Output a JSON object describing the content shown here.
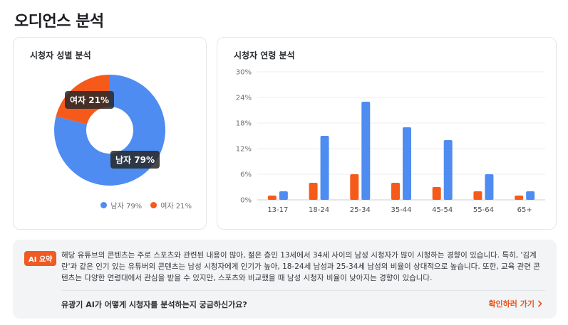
{
  "page": {
    "title": "오디언스 분석"
  },
  "gender": {
    "title": "시청자 성별 분석",
    "segments": [
      {
        "name": "남자",
        "value": 79,
        "color": "#4e8cf1"
      },
      {
        "name": "여자",
        "value": 21,
        "color": "#f65a1b"
      }
    ],
    "tooltip_male": "남자 79%",
    "tooltip_female": "여자 21%",
    "legend_male": "남자 79%",
    "legend_female": "여자 21%"
  },
  "age": {
    "title": "시청자 연령 분석"
  },
  "chart_data": {
    "type": "bar",
    "categories": [
      "13-17",
      "18-24",
      "25-34",
      "35-44",
      "45-54",
      "55-64",
      "65+"
    ],
    "series": [
      {
        "values": [
          1,
          4,
          6,
          4,
          3,
          2,
          1
        ],
        "color": "#f65a1b"
      },
      {
        "values": [
          2,
          15,
          23,
          17,
          14,
          6,
          2
        ],
        "color": "#4e8cf1"
      }
    ],
    "ylim": [
      0,
      30
    ],
    "yticks": [
      "0%",
      "6%",
      "12%",
      "18%",
      "24%",
      "30%"
    ],
    "grid": true
  },
  "ai": {
    "badge": "AI 요약",
    "summary": "해당 유튜브의 콘텐츠는 주로 스포츠와 관련된 내용이 많아, 젊은 층인 13세에서 34세 사이의 남성 시청자가 많이 시청하는 경향이 있습니다. 특히, '김계란'과 같은 인기 있는 유튜버의 콘텐츠는 남성 시청자에게 인기가 높아, 18-24세 남성과 25-34세 남성의 비율이 상대적으로 높습니다. 또한, 교육 관련 콘텐츠는 다양한 연령대에서 관심을 받을 수 있지만, 스포츠와 비교했을 때 남성 시청자 비율이 낮아지는 경향이 있습니다.",
    "question": "유광기 AI가 어떻게 시청자를 분석하는지 궁금하신가요?",
    "link_label": "확인하러 가기"
  }
}
